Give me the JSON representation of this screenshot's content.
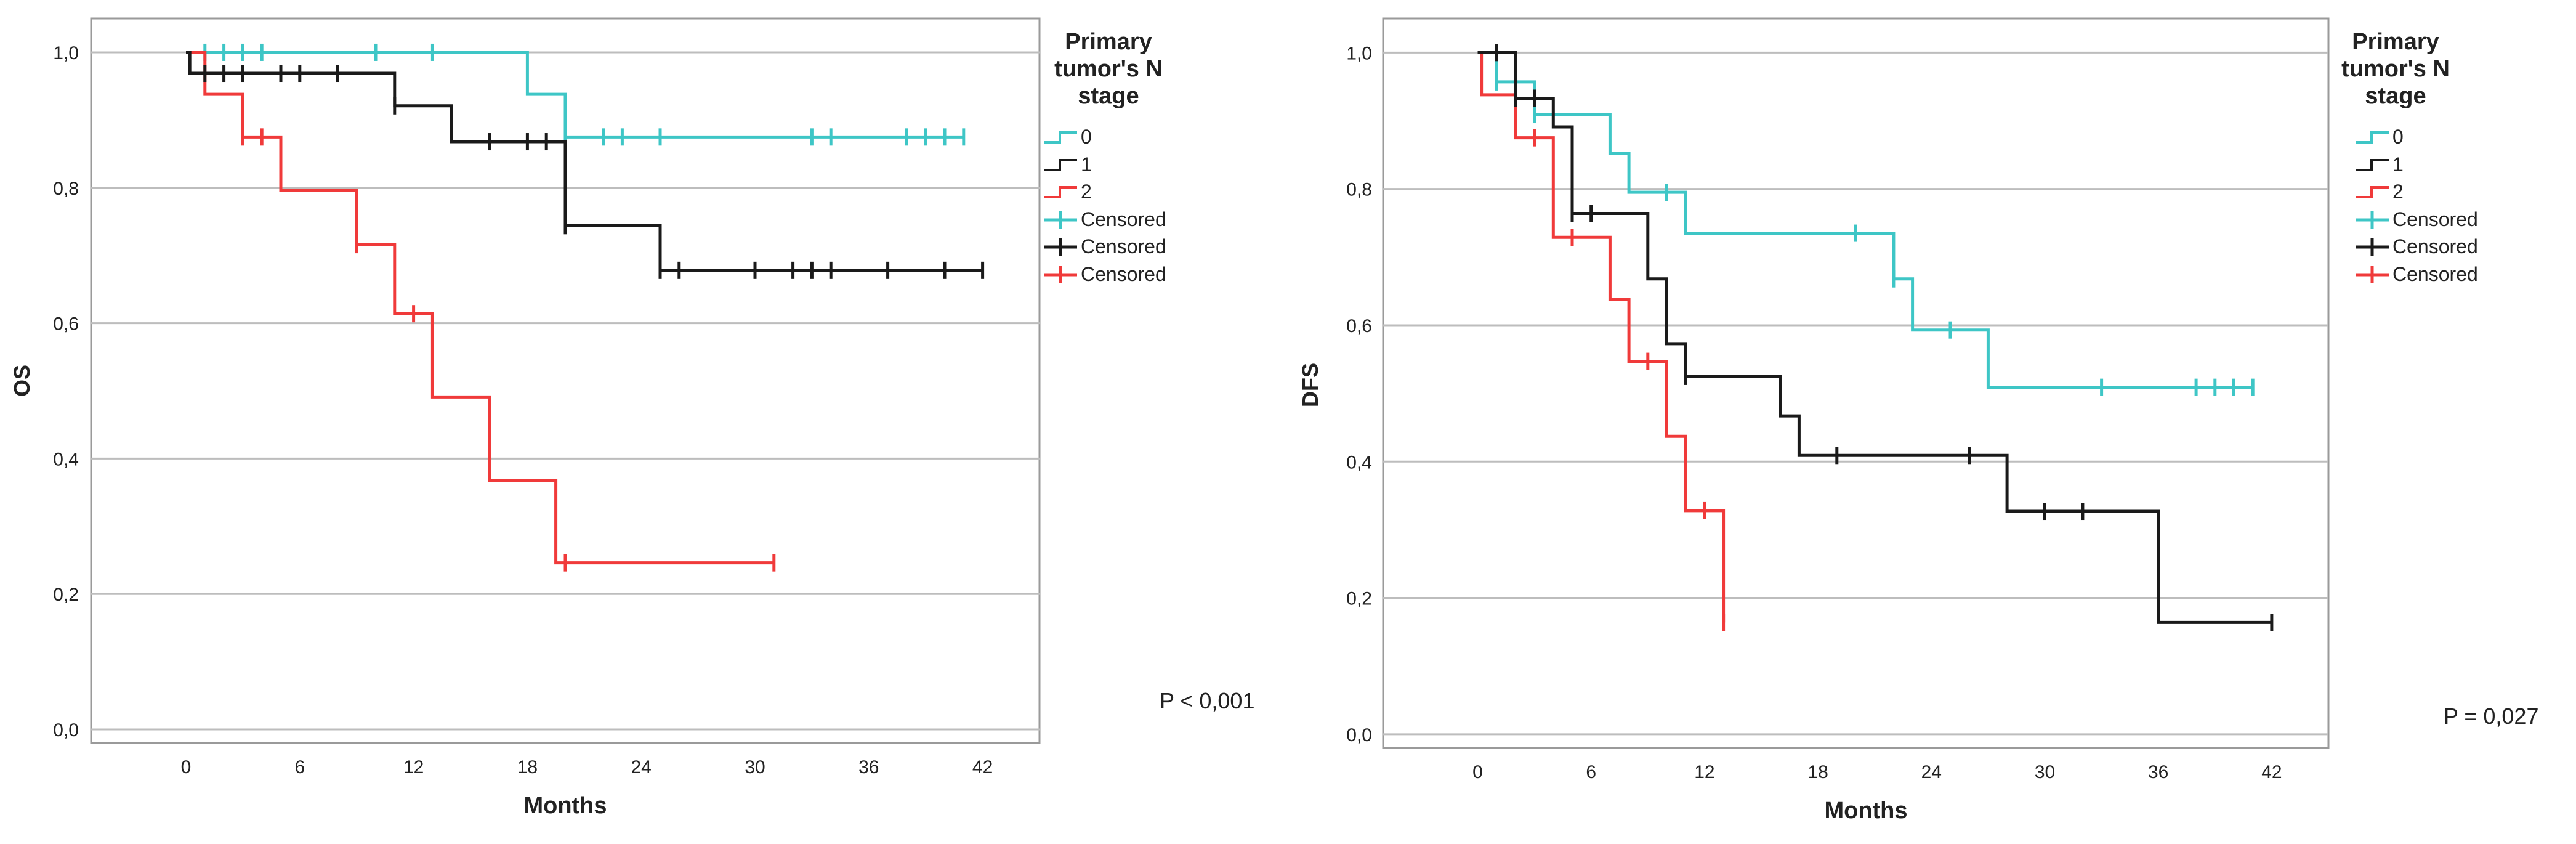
{
  "chart_data": [
    {
      "type": "line",
      "subtype": "kaplan-meier-step",
      "ylabel": "OS",
      "xlabel": "Months",
      "xlim": [
        -5,
        45
      ],
      "ylim": [
        -0.02,
        1.05
      ],
      "xticks": [
        0,
        6,
        12,
        18,
        24,
        30,
        36,
        42
      ],
      "xtick_labels": [
        "0",
        "6",
        "12",
        "18",
        "24",
        "30",
        "36",
        "42"
      ],
      "yticks": [
        0.0,
        0.2,
        0.4,
        0.6,
        0.8,
        1.0
      ],
      "ytick_labels": [
        "0,0",
        "0,2",
        "0,4",
        "0,6",
        "0,8",
        "1,0"
      ],
      "grid": "horizontal",
      "legend_title": [
        "Primary",
        "tumor's N",
        "stage"
      ],
      "legend_items": [
        "0",
        "1",
        "2",
        "Censored",
        "Censored",
        "Censored"
      ],
      "p_value_text": "P < 0,001",
      "series": [
        {
          "name": "0",
          "color": "#3ec6c6",
          "steps": [
            [
              0,
              1.0
            ],
            [
              18,
              0.938
            ],
            [
              20,
              0.875
            ],
            [
              41,
              0.875
            ]
          ],
          "censored": [
            [
              1,
              1.0
            ],
            [
              2,
              1.0
            ],
            [
              3,
              1.0
            ],
            [
              4,
              1.0
            ],
            [
              10,
              1.0
            ],
            [
              13,
              1.0
            ],
            [
              20,
              0.875
            ],
            [
              22,
              0.875
            ],
            [
              23,
              0.875
            ],
            [
              25,
              0.875
            ],
            [
              33,
              0.875
            ],
            [
              34,
              0.875
            ],
            [
              38,
              0.875
            ],
            [
              39,
              0.875
            ],
            [
              40,
              0.875
            ],
            [
              41,
              0.875
            ]
          ]
        },
        {
          "name": "1",
          "color": "#1a1a1a",
          "steps": [
            [
              0,
              1.0
            ],
            [
              0.2,
              0.969
            ],
            [
              11,
              0.921
            ],
            [
              14,
              0.868
            ],
            [
              20,
              0.744
            ],
            [
              25,
              0.678
            ],
            [
              42,
              0.678
            ]
          ],
          "censored": [
            [
              1,
              0.969
            ],
            [
              2,
              0.969
            ],
            [
              3,
              0.969
            ],
            [
              5,
              0.969
            ],
            [
              6,
              0.969
            ],
            [
              8,
              0.969
            ],
            [
              11,
              0.921
            ],
            [
              16,
              0.868
            ],
            [
              18,
              0.868
            ],
            [
              19,
              0.868
            ],
            [
              20,
              0.744
            ],
            [
              25,
              0.678
            ],
            [
              26,
              0.678
            ],
            [
              30,
              0.678
            ],
            [
              32,
              0.678
            ],
            [
              33,
              0.678
            ],
            [
              34,
              0.678
            ],
            [
              37,
              0.678
            ],
            [
              40,
              0.678
            ],
            [
              42,
              0.678
            ]
          ]
        },
        {
          "name": "2",
          "color": "#f03a3a",
          "steps": [
            [
              0,
              1.0
            ],
            [
              1,
              0.938
            ],
            [
              3,
              0.875
            ],
            [
              5,
              0.796
            ],
            [
              9,
              0.716
            ],
            [
              11,
              0.614
            ],
            [
              13,
              0.491
            ],
            [
              16,
              0.368
            ],
            [
              19.5,
              0.246
            ],
            [
              31,
              0.246
            ]
          ],
          "censored": [
            [
              3,
              0.875
            ],
            [
              4,
              0.875
            ],
            [
              9,
              0.716
            ],
            [
              12,
              0.614
            ],
            [
              20,
              0.246
            ],
            [
              31,
              0.246
            ]
          ]
        }
      ]
    },
    {
      "type": "line",
      "subtype": "kaplan-meier-step",
      "ylabel": "DFS",
      "xlabel": "Months",
      "xlim": [
        -5,
        45
      ],
      "ylim": [
        -0.02,
        1.05
      ],
      "xticks": [
        0,
        6,
        12,
        18,
        24,
        30,
        36,
        42
      ],
      "xtick_labels": [
        "0",
        "6",
        "12",
        "18",
        "24",
        "30",
        "36",
        "42"
      ],
      "yticks": [
        0.0,
        0.2,
        0.4,
        0.6,
        0.8,
        1.0
      ],
      "ytick_labels": [
        "0,0",
        "0,2",
        "0,4",
        "0,6",
        "0,8",
        "1,0"
      ],
      "grid": "horizontal",
      "legend_title": [
        "Primary",
        "tumor's N",
        "stage"
      ],
      "legend_items": [
        "0",
        "1",
        "2",
        "Censored",
        "Censored",
        "Censored"
      ],
      "p_value_text": "P = 0,027",
      "series": [
        {
          "name": "0",
          "color": "#3ec6c6",
          "steps": [
            [
              0,
              1.0
            ],
            [
              1,
              0.957
            ],
            [
              3,
              0.909
            ],
            [
              7,
              0.852
            ],
            [
              8,
              0.795
            ],
            [
              11,
              0.735
            ],
            [
              22,
              0.668
            ],
            [
              23,
              0.593
            ],
            [
              27,
              0.509
            ],
            [
              41,
              0.509
            ]
          ],
          "censored": [
            [
              1,
              0.957
            ],
            [
              3,
              0.909
            ],
            [
              10,
              0.795
            ],
            [
              20,
              0.735
            ],
            [
              22,
              0.668
            ],
            [
              25,
              0.593
            ],
            [
              33,
              0.509
            ],
            [
              38,
              0.509
            ],
            [
              39,
              0.509
            ],
            [
              40,
              0.509
            ],
            [
              41,
              0.509
            ]
          ]
        },
        {
          "name": "1",
          "color": "#1a1a1a",
          "steps": [
            [
              0,
              1.0
            ],
            [
              2,
              0.933
            ],
            [
              4,
              0.891
            ],
            [
              5,
              0.764
            ],
            [
              9,
              0.668
            ],
            [
              10,
              0.573
            ],
            [
              11,
              0.525
            ],
            [
              16,
              0.467
            ],
            [
              17,
              0.409
            ],
            [
              28,
              0.327
            ],
            [
              36,
              0.164
            ],
            [
              42,
              0.164
            ]
          ],
          "censored": [
            [
              1,
              1.0
            ],
            [
              2,
              0.933
            ],
            [
              3,
              0.933
            ],
            [
              5,
              0.764
            ],
            [
              6,
              0.764
            ],
            [
              11,
              0.525
            ],
            [
              19,
              0.409
            ],
            [
              26,
              0.409
            ],
            [
              30,
              0.327
            ],
            [
              32,
              0.327
            ],
            [
              42,
              0.164
            ]
          ]
        },
        {
          "name": "2",
          "color": "#f03a3a",
          "steps": [
            [
              0,
              1.0
            ],
            [
              0.2,
              0.938
            ],
            [
              2,
              0.875
            ],
            [
              4,
              0.729
            ],
            [
              7,
              0.638
            ],
            [
              8,
              0.547
            ],
            [
              10,
              0.437
            ],
            [
              11,
              0.328
            ],
            [
              13,
              0.164
            ]
          ],
          "censored": [
            [
              3,
              0.875
            ],
            [
              5,
              0.729
            ],
            [
              9,
              0.547
            ],
            [
              12,
              0.328
            ],
            [
              13,
              0.164
            ]
          ]
        }
      ]
    }
  ]
}
